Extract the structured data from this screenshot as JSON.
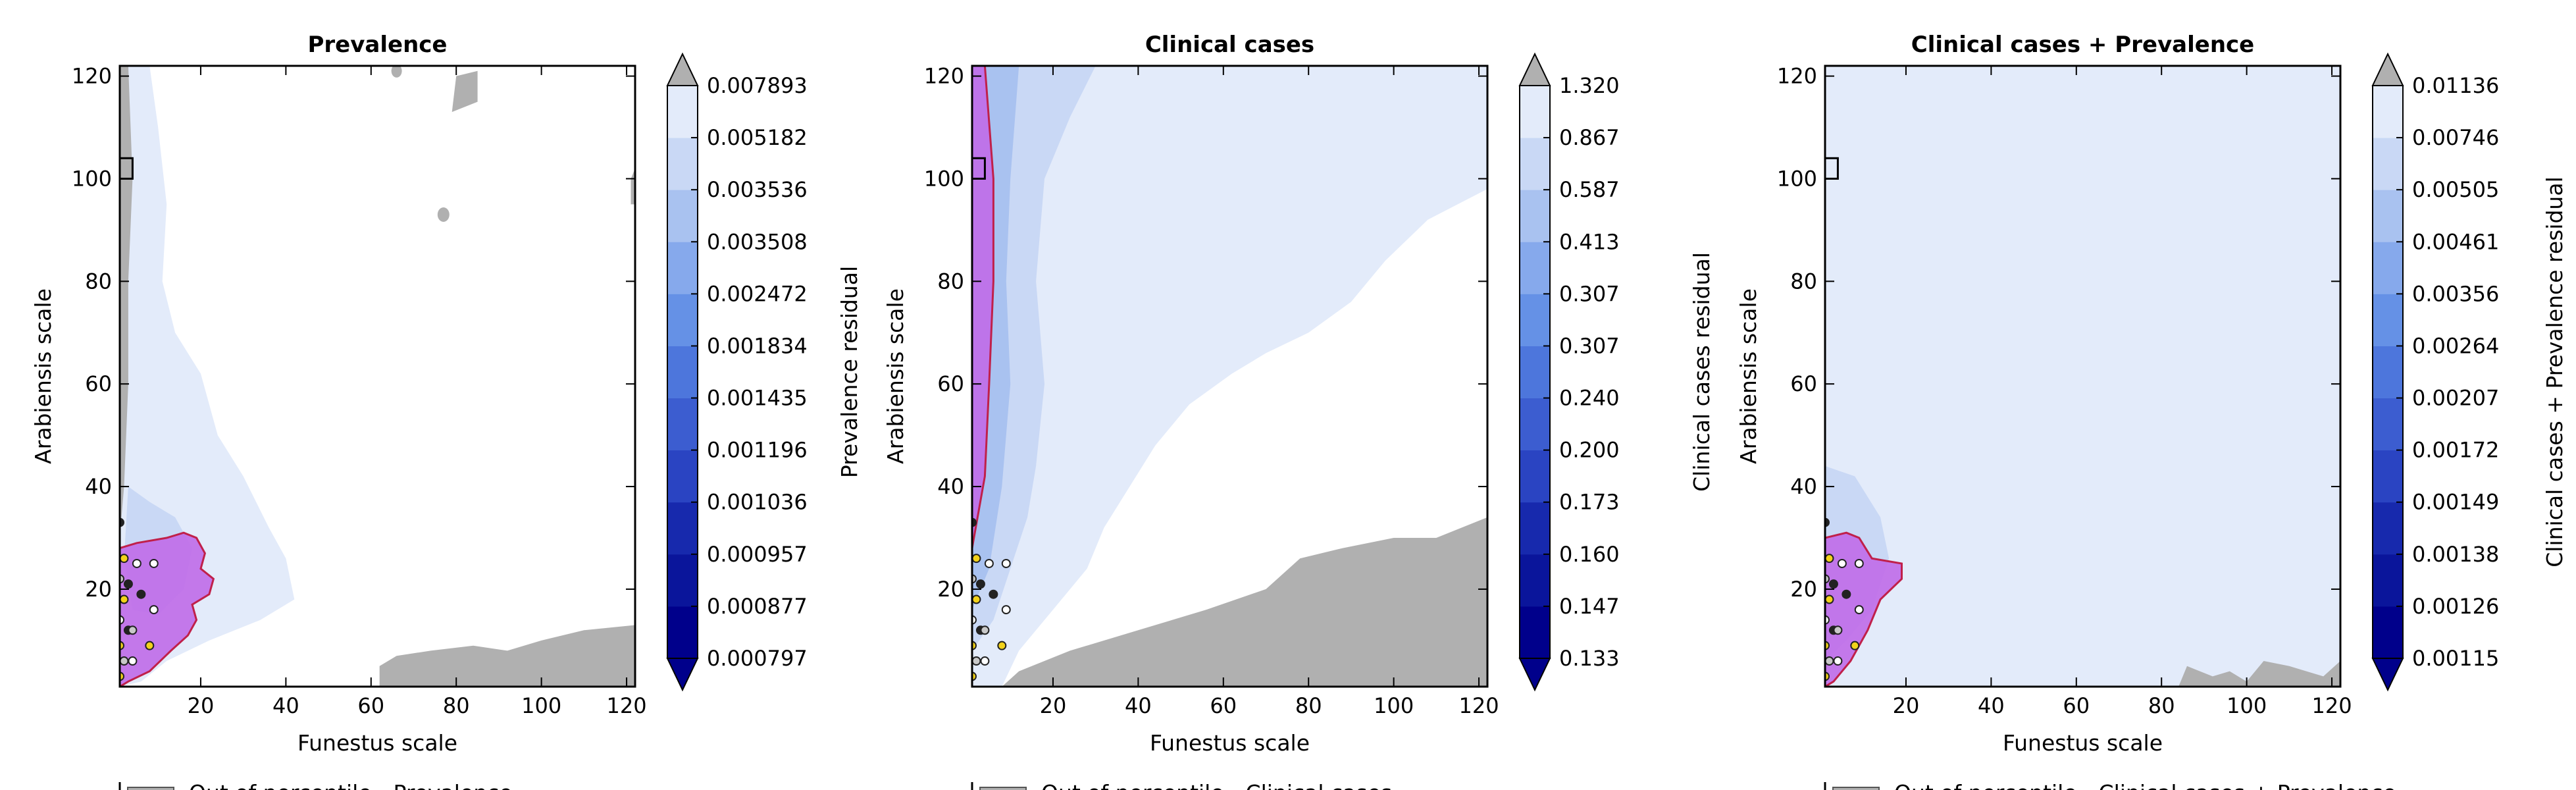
{
  "chart_data": [
    {
      "type": "contour",
      "title": "Prevalence",
      "xlabel": "Funestus scale",
      "ylabel": "Arabiensis scale",
      "xlim": [
        1,
        122
      ],
      "ylim": [
        1,
        122
      ],
      "xticks": [
        20,
        40,
        60,
        80,
        100,
        120
      ],
      "yticks": [
        20,
        40,
        60,
        80,
        100,
        120
      ],
      "colorbar": {
        "label": "Prevalence residual",
        "levels": [
          "0.000797",
          "0.000877",
          "0.000957",
          "0.001036",
          "0.001196",
          "0.001435",
          "0.001834",
          "0.002472",
          "0.003508",
          "0.003536",
          "0.005182",
          "0.007893"
        ],
        "extend": "both"
      },
      "best_box": [
        1,
        4,
        100,
        104
      ],
      "legend_partial": "Out of percentile - Prevalence"
    },
    {
      "type": "contour",
      "title": "Clinical cases",
      "xlabel": "Funestus scale",
      "ylabel": "Arabiensis scale",
      "xlim": [
        1,
        122
      ],
      "ylim": [
        1,
        122
      ],
      "xticks": [
        20,
        40,
        60,
        80,
        100,
        120
      ],
      "yticks": [
        20,
        40,
        60,
        80,
        100,
        120
      ],
      "colorbar": {
        "label": "Clinical cases residual",
        "levels": [
          "0.133",
          "0.147",
          "0.160",
          "0.173",
          "0.200",
          "0.240",
          "0.307",
          "0.307",
          "0.413",
          "0.587",
          "0.867",
          "1.320"
        ],
        "extend": "both"
      },
      "best_box": [
        1,
        4,
        100,
        104
      ],
      "legend_partial": "Out of percentile - Clinical cases"
    },
    {
      "type": "contour",
      "title": "Clinical cases + Prevalence",
      "xlabel": "Funestus scale",
      "ylabel": "Arabiensis scale",
      "xlim": [
        1,
        122
      ],
      "ylim": [
        1,
        122
      ],
      "xticks": [
        20,
        40,
        60,
        80,
        100,
        120
      ],
      "yticks": [
        20,
        40,
        60,
        80,
        100,
        120
      ],
      "colorbar": {
        "label": "Clinical cases + Prevalence residual",
        "levels": [
          "0.00115",
          "0.00126",
          "0.00138",
          "0.00149",
          "0.00172",
          "0.00207",
          "0.00264",
          "0.00356",
          "0.00461",
          "0.00505",
          "0.00746",
          "0.01136"
        ],
        "extend": "both"
      },
      "best_box": [
        1,
        4,
        100,
        104
      ],
      "legend_partial": "Out of percentile - Clinical cases + Prevalence"
    }
  ],
  "colors": {
    "outside": "#b0b0b0",
    "light": "#e3ebfa",
    "light2": "#c9d8f5",
    "medium": "#a9c2f0",
    "region": "#c06ee8",
    "region_stroke": "#c0204a",
    "cbar": [
      "#00008b",
      "#0a159b",
      "#1729ad",
      "#2a44c2",
      "#3c5dd0",
      "#4d76dc",
      "#6591e6",
      "#86a9ec",
      "#a9c2f0",
      "#c9d8f5",
      "#e3ebfa",
      "#ffffff"
    ]
  }
}
